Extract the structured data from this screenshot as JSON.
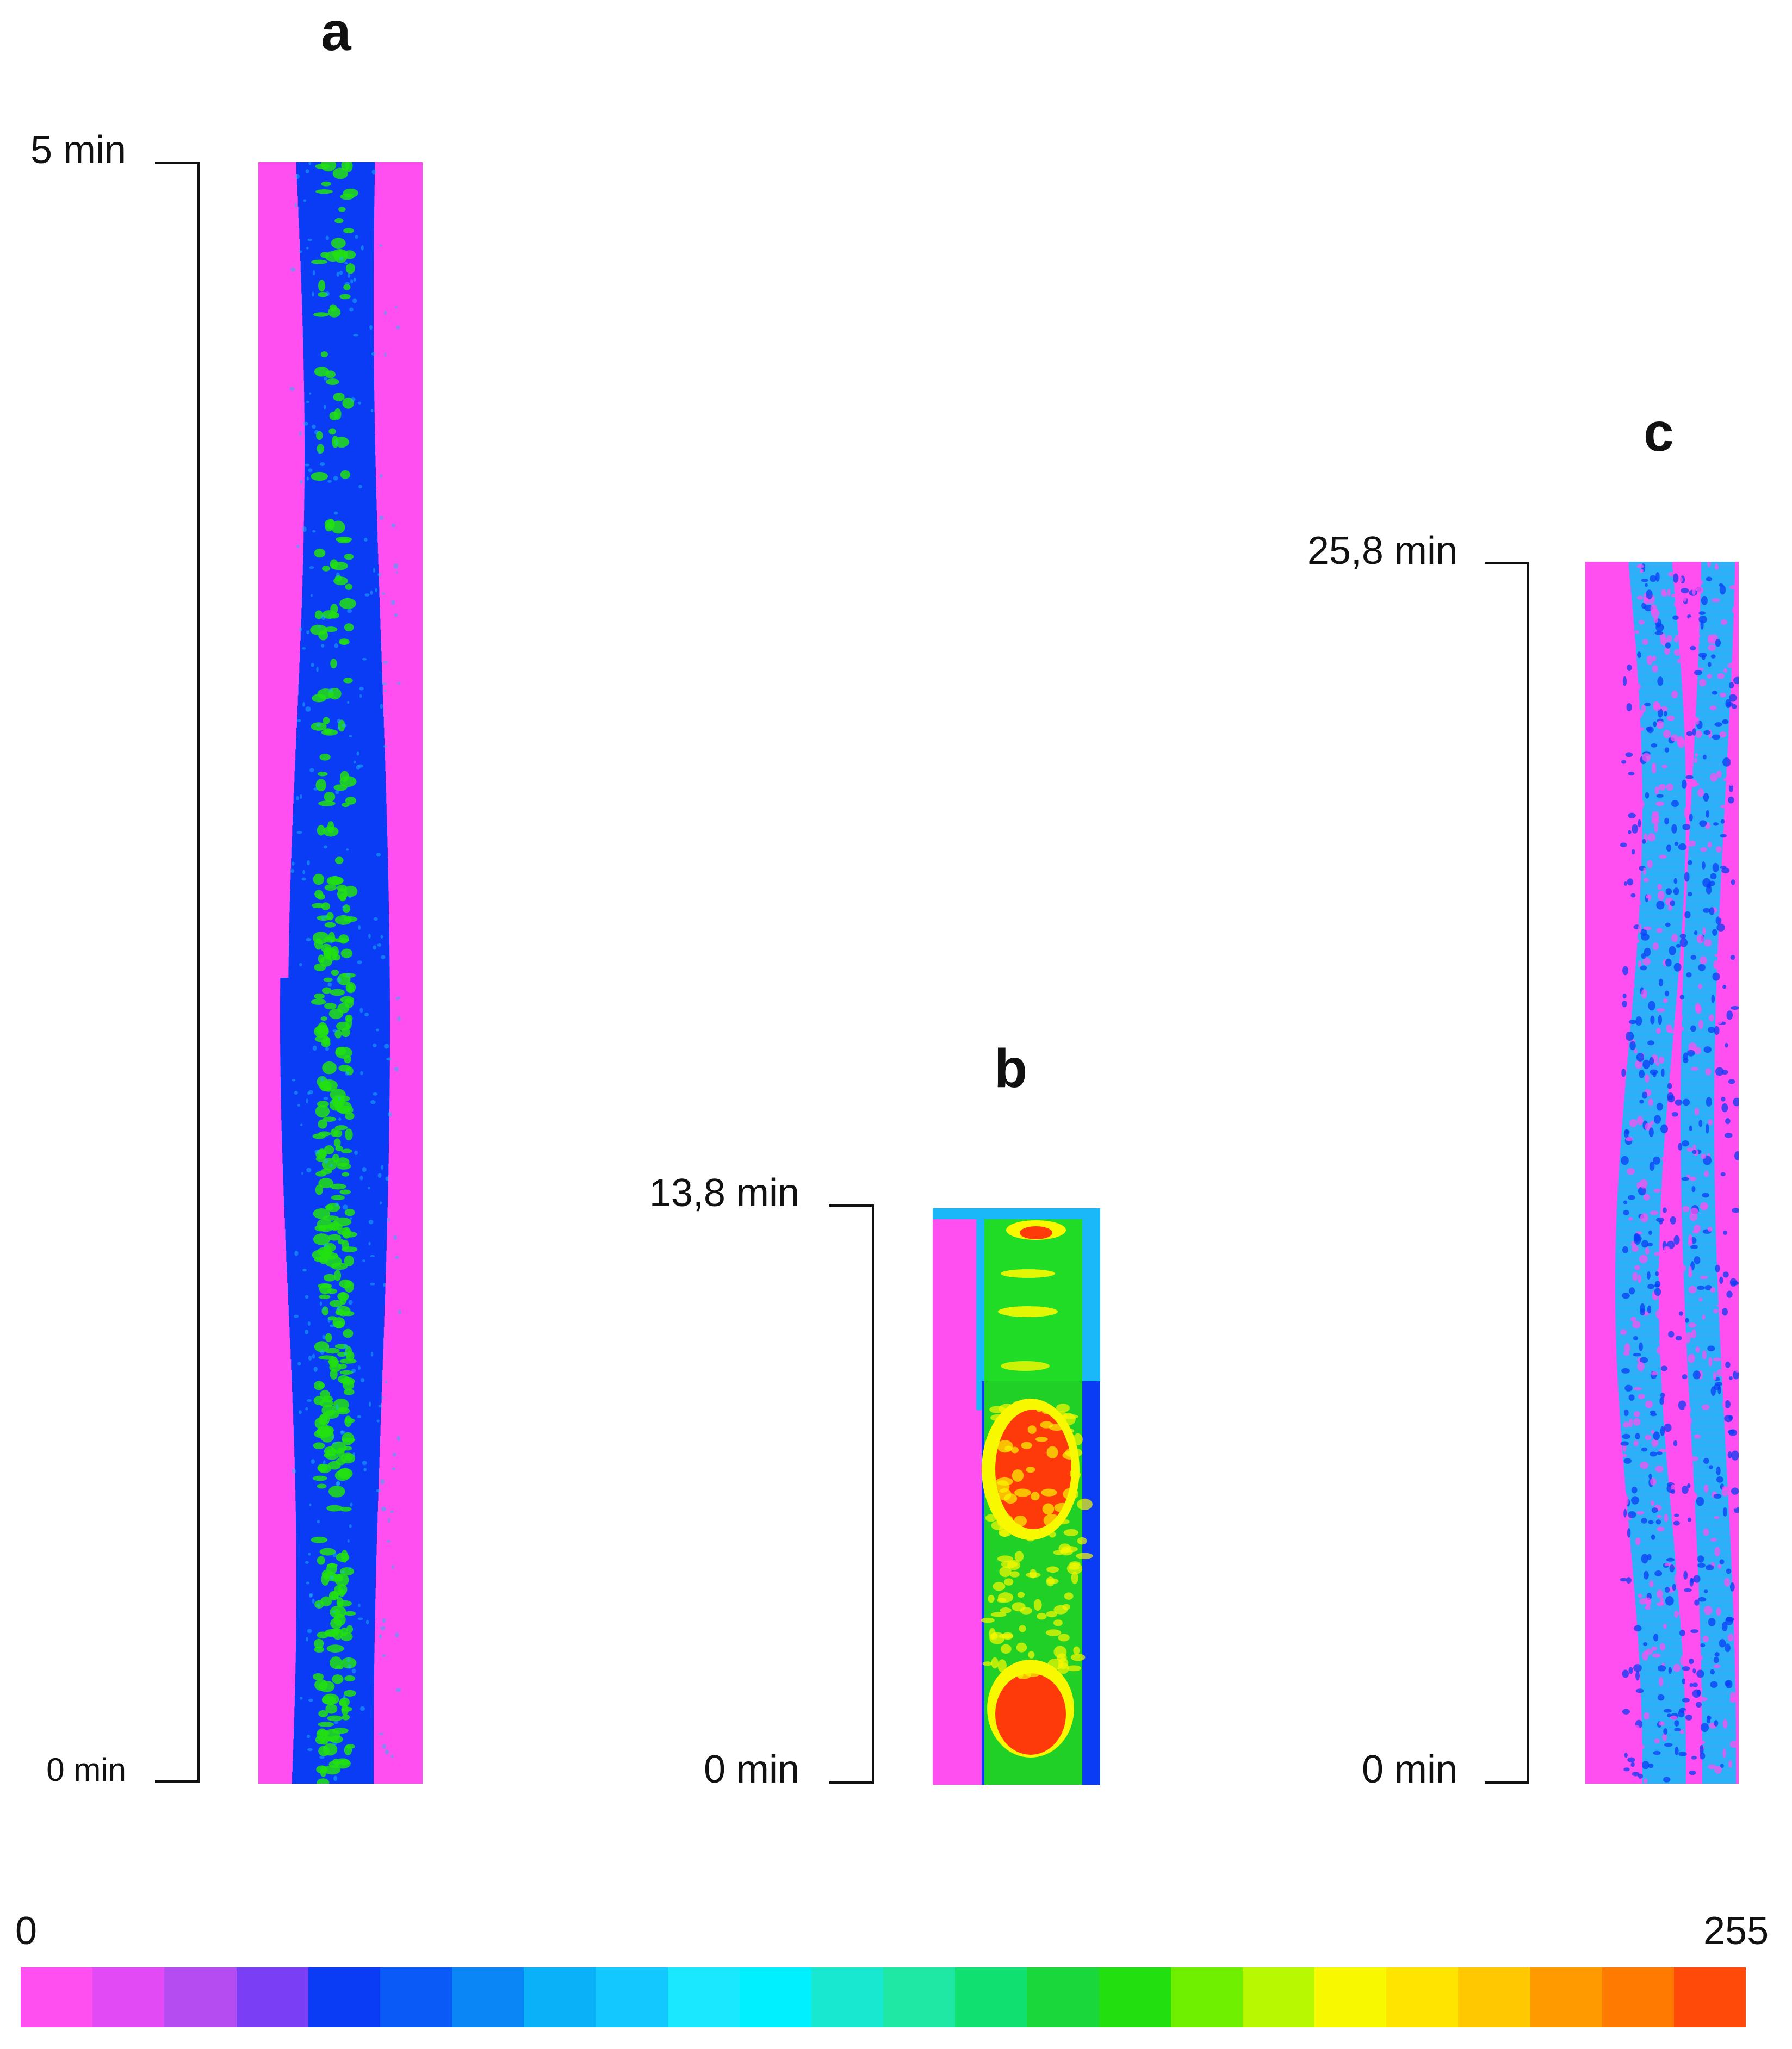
{
  "panels": {
    "a": {
      "letter": "a",
      "top_label": "5 min",
      "bottom_label": "0 min"
    },
    "b": {
      "letter": "b",
      "top_label": "13,8 min",
      "bottom_label": "0 min"
    },
    "c": {
      "letter": "c",
      "top_label": "25,8 min",
      "bottom_label": "0 min"
    }
  },
  "colorscale": {
    "min_label": "0",
    "max_label": "255",
    "colors": [
      "#ff4ff0",
      "#e14af5",
      "#b54cf2",
      "#7a3ef5",
      "#0a3cf5",
      "#0a5af8",
      "#0a86f7",
      "#0ab0f8",
      "#12c8ff",
      "#1ae8ff",
      "#00f0ff",
      "#18e8d0",
      "#1ee8a4",
      "#10e070",
      "#1ad83c",
      "#22e010",
      "#6ef000",
      "#b8f800",
      "#f8f800",
      "#ffe400",
      "#ffc800",
      "#ff9a00",
      "#ff7a00",
      "#ff4a0a"
    ]
  },
  "strip_colors": {
    "magenta": "#ff4ff0",
    "blue": "#0a3cf5",
    "cyan": "#1ab8f8",
    "green": "#22e010",
    "yellow": "#f8f800",
    "red": "#ff3a0a"
  }
}
